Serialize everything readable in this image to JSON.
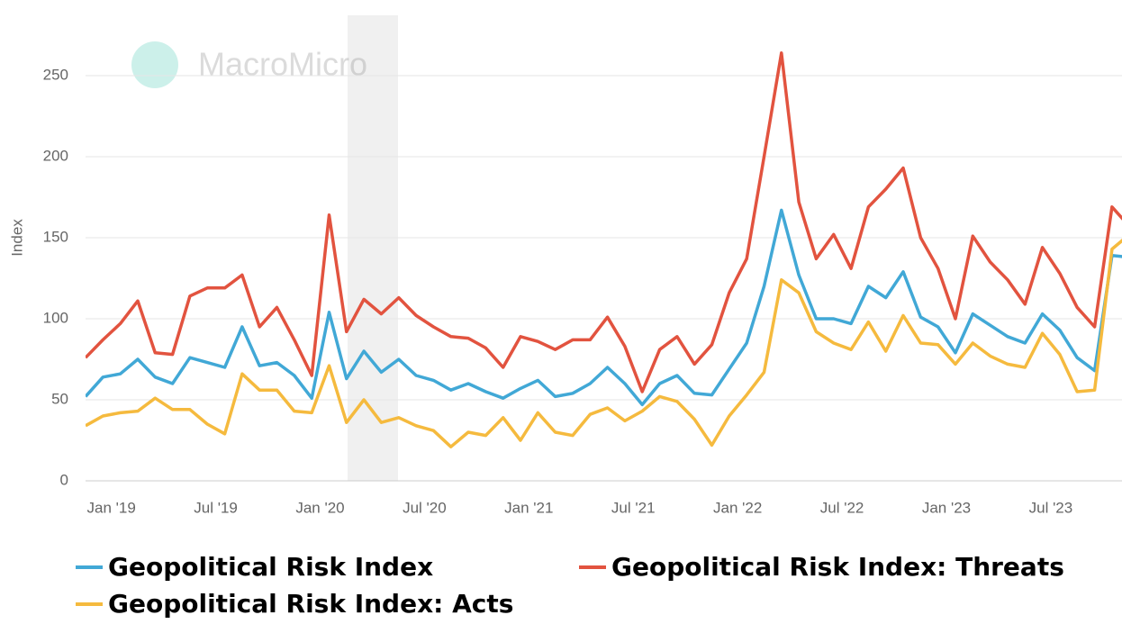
{
  "chart_data": {
    "type": "line",
    "watermark": "MacroMicro",
    "y_label": "Index",
    "categories": [
      null,
      null,
      "Jan '19",
      null,
      null,
      null,
      null,
      null,
      "Jul '19",
      null,
      null,
      null,
      null,
      null,
      "Jan '20",
      null,
      null,
      null,
      null,
      null,
      "Jul '20",
      null,
      null,
      null,
      null,
      null,
      "Jan '21",
      null,
      null,
      null,
      null,
      null,
      "Jul '21",
      null,
      null,
      null,
      null,
      null,
      "Jan '22",
      null,
      null,
      null,
      null,
      null,
      "Jul '22",
      null,
      null,
      null,
      null,
      null,
      "Jan '23",
      null,
      null,
      null,
      null,
      null,
      "Jul '23",
      null,
      null,
      null,
      null
    ],
    "series": [
      {
        "name": "Geopolitical Risk Index",
        "color": "#41a8d6",
        "values": [
          52,
          64,
          66,
          75,
          64,
          60,
          76,
          73,
          70,
          95,
          71,
          73,
          65,
          51,
          104,
          63,
          80,
          67,
          75,
          65,
          62,
          56,
          60,
          55,
          51,
          57,
          62,
          52,
          54,
          60,
          70,
          60,
          47,
          60,
          65,
          54,
          53,
          69,
          85,
          120,
          167,
          127,
          100,
          100,
          97,
          120,
          113,
          129,
          101,
          95,
          79,
          103,
          96,
          89,
          85,
          103,
          93,
          76,
          68,
          139,
          138
        ]
      },
      {
        "name": "Geopolitical Risk Index: Threats",
        "color": "#e2533f",
        "values": [
          76,
          87,
          97,
          111,
          79,
          78,
          114,
          119,
          119,
          127,
          95,
          107,
          87,
          65,
          164,
          92,
          112,
          103,
          113,
          102,
          95,
          89,
          88,
          82,
          70,
          89,
          86,
          81,
          87,
          87,
          101,
          83,
          55,
          81,
          89,
          72,
          84,
          116,
          137,
          200,
          264,
          172,
          137,
          152,
          131,
          169,
          180,
          193,
          150,
          131,
          100,
          151,
          135,
          124,
          109,
          144,
          128,
          107,
          95,
          169,
          157
        ]
      },
      {
        "name": "Geopolitical Risk Index: Acts",
        "color": "#f5ba3e",
        "values": [
          34,
          40,
          42,
          43,
          51,
          44,
          44,
          35,
          29,
          66,
          56,
          56,
          43,
          42,
          71,
          36,
          50,
          36,
          39,
          34,
          31,
          21,
          30,
          28,
          39,
          25,
          42,
          30,
          28,
          41,
          45,
          37,
          43,
          52,
          49,
          38,
          22,
          40,
          53,
          67,
          124,
          116,
          92,
          85,
          81,
          98,
          80,
          102,
          85,
          84,
          72,
          85,
          77,
          72,
          70,
          91,
          78,
          55,
          56,
          143,
          152
        ]
      }
    ],
    "ylim": [
      0,
      270
    ],
    "yticks": [
      0,
      50,
      100,
      150,
      200,
      250
    ],
    "grid": true
  }
}
